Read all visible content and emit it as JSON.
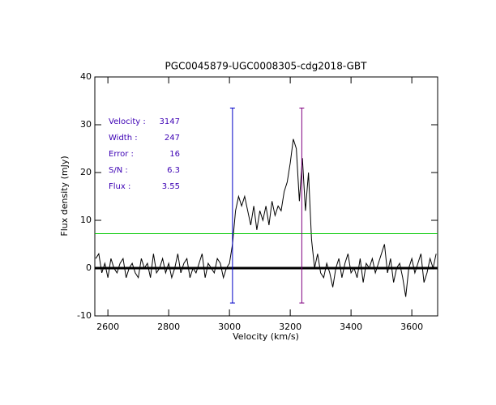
{
  "chart_data": {
    "type": "line",
    "title": "PGC0045879-UGC0008305-cdg2018-GBT",
    "xlabel": "Velocity (km/s)",
    "ylabel": "Flux density (mJy)",
    "xlim": [
      2557,
      3685
    ],
    "ylim": [
      -10,
      40
    ],
    "xticks": [
      2600,
      2800,
      3000,
      3200,
      3400,
      3600
    ],
    "yticks": [
      -10,
      0,
      10,
      20,
      30,
      40
    ],
    "series": [
      {
        "color": "#000000",
        "x": [
          2560,
          2570,
          2580,
          2590,
          2600,
          2610,
          2620,
          2630,
          2640,
          2650,
          2660,
          2670,
          2680,
          2690,
          2700,
          2710,
          2720,
          2730,
          2740,
          2750,
          2760,
          2770,
          2780,
          2790,
          2800,
          2810,
          2820,
          2830,
          2840,
          2850,
          2860,
          2870,
          2880,
          2890,
          2900,
          2910,
          2920,
          2930,
          2940,
          2950,
          2960,
          2970,
          2980,
          2990,
          3000,
          3010,
          3020,
          3030,
          3040,
          3050,
          3060,
          3070,
          3080,
          3090,
          3100,
          3110,
          3120,
          3130,
          3140,
          3150,
          3160,
          3170,
          3180,
          3190,
          3200,
          3210,
          3220,
          3230,
          3240,
          3250,
          3260,
          3270,
          3280,
          3290,
          3300,
          3310,
          3320,
          3330,
          3340,
          3350,
          3360,
          3370,
          3380,
          3390,
          3400,
          3410,
          3420,
          3430,
          3440,
          3450,
          3460,
          3470,
          3480,
          3490,
          3500,
          3510,
          3520,
          3530,
          3540,
          3550,
          3560,
          3570,
          3580,
          3590,
          3600,
          3610,
          3620,
          3630,
          3640,
          3650,
          3660,
          3670,
          3680
        ],
        "values": [
          2,
          3,
          -1,
          1,
          -2,
          2,
          0,
          -1,
          1,
          2,
          -2,
          0,
          1,
          -1,
          -2,
          2,
          0,
          1,
          -2,
          3,
          -1,
          0,
          2,
          -1,
          1,
          -2,
          0,
          3,
          -1,
          1,
          2,
          -2,
          0,
          -1,
          1,
          3,
          -2,
          1,
          0,
          -1,
          2,
          1,
          -2,
          0,
          1,
          5,
          12,
          15,
          13,
          15,
          12,
          9,
          13,
          8,
          12,
          10,
          13,
          9,
          14,
          11,
          13,
          12,
          16,
          18,
          22,
          27,
          25,
          14,
          23,
          12,
          20,
          6,
          0,
          3,
          -1,
          -2,
          1,
          -1,
          -4,
          0,
          2,
          -2,
          1,
          3,
          -1,
          0,
          -2,
          2,
          -3,
          1,
          0,
          2,
          -1,
          1,
          3,
          5,
          -1,
          2,
          -3,
          0,
          1,
          -2,
          -6,
          0,
          2,
          -1,
          1,
          3,
          -3,
          -1,
          2,
          0,
          3
        ]
      }
    ],
    "hlines": [
      {
        "value": 7.2,
        "color": "#00c800"
      },
      {
        "value": 0,
        "color": "#000000"
      }
    ],
    "vlines": [
      {
        "value": 3010,
        "ymin": -7.3,
        "ymax": 33.5,
        "color": "#0000c8"
      },
      {
        "value": 3238,
        "ymin": -7.3,
        "ymax": 33.5,
        "color": "#800080"
      }
    ],
    "annotations": [
      {
        "label": "Velocity :",
        "value": 3147
      },
      {
        "label": "Width :",
        "value": 247
      },
      {
        "label": "Error :",
        "value": 16
      },
      {
        "label": "S/N :",
        "value": 6.3
      },
      {
        "label": "Flux :",
        "value": 3.55
      }
    ],
    "annotation_color": "#3c00b4"
  }
}
